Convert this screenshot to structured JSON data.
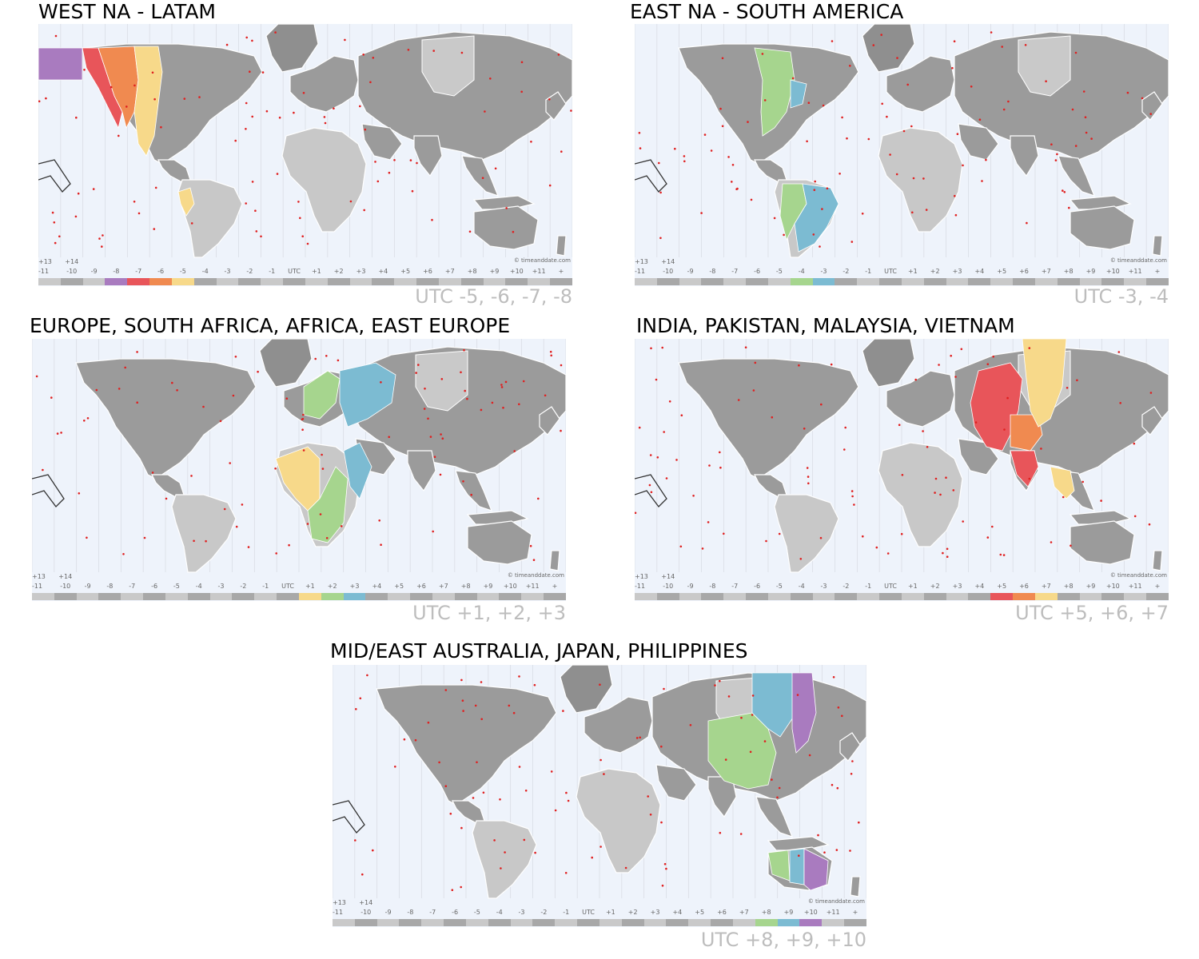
{
  "panels": [
    {
      "title": "WEST NA - LATAM",
      "utc": "UTC -5, -6, -7, -8",
      "credit": "© timeanddate.com"
    },
    {
      "title": "EAST NA - SOUTH AMERICA",
      "utc": "UTC -3, -4",
      "credit": "© timeanddate.com"
    },
    {
      "title": "EUROPE, SOUTH AFRICA, AFRICA, EAST EUROPE",
      "utc": "UTC +1, +2, +3",
      "credit": "© timeanddate.com"
    },
    {
      "title": "INDIA, PAKISTAN, MALAYSIA, VIETNAM",
      "utc": "UTC +5, +6, +7",
      "credit": "© timeanddate.com"
    },
    {
      "title": "MID/EAST AUSTRALIA, JAPAN, PHILIPPINES",
      "utc": "UTC +8, +9, +10",
      "credit": "© timeanddate.com"
    }
  ],
  "timezone_axis": {
    "top_labels": [
      "+13",
      "+14"
    ],
    "labels": [
      "-11",
      "-10",
      "-9",
      "-8",
      "-7",
      "-6",
      "-5",
      "-4",
      "-3",
      "-2",
      "-1",
      "UTC",
      "+1",
      "+2",
      "+3",
      "+4",
      "+5",
      "+6",
      "+7",
      "+8",
      "+9",
      "+10",
      "+11",
      "+"
    ]
  },
  "highlight_colors": {
    "purple": "#a97bbf",
    "red": "#e8555a",
    "orange": "#f08a50",
    "yellow": "#f7d98a",
    "green": "#a6d58e",
    "blue": "#7cbbd2",
    "land_gray": "#9b9b9b",
    "land_light": "#c8c8c8",
    "ocean": "#eef3fb"
  },
  "highlights": [
    {
      "panel": 0,
      "zones": [
        {
          "offset": "-8",
          "color": "#a97bbf"
        },
        {
          "offset": "-7",
          "color": "#e8555a"
        },
        {
          "offset": "-6",
          "color": "#f08a50"
        },
        {
          "offset": "-5",
          "color": "#f7d98a"
        }
      ]
    },
    {
      "panel": 1,
      "zones": [
        {
          "offset": "-4",
          "color": "#a6d58e"
        },
        {
          "offset": "-3",
          "color": "#7cbbd2"
        }
      ]
    },
    {
      "panel": 2,
      "zones": [
        {
          "offset": "+1",
          "color": "#f7d98a"
        },
        {
          "offset": "+2",
          "color": "#a6d58e"
        },
        {
          "offset": "+3",
          "color": "#7cbbd2"
        }
      ]
    },
    {
      "panel": 3,
      "zones": [
        {
          "offset": "+5",
          "color": "#e8555a"
        },
        {
          "offset": "+6",
          "color": "#f08a50"
        },
        {
          "offset": "+7",
          "color": "#f7d98a"
        }
      ]
    },
    {
      "panel": 4,
      "zones": [
        {
          "offset": "+8",
          "color": "#a6d58e"
        },
        {
          "offset": "+9",
          "color": "#7cbbd2"
        },
        {
          "offset": "+10",
          "color": "#a97bbf"
        }
      ]
    }
  ]
}
